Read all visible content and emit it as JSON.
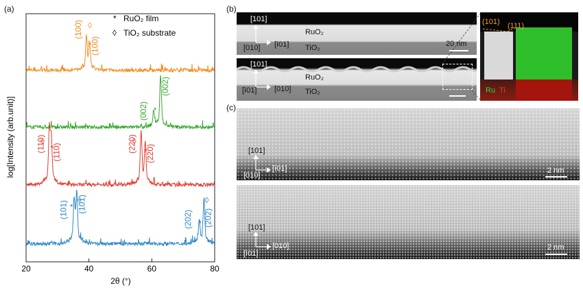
{
  "panels": {
    "a": "(a)",
    "b": "(b)",
    "c": "(c)"
  },
  "xrd": {
    "legend": {
      "film_symbol": "*",
      "film_label": "RuO₂ film",
      "substrate_symbol": "◊",
      "substrate_label": "TiO₂ substrate"
    },
    "ylabel": "log[Intensity (arb.unit)]",
    "xlabel": "2θ (°)",
    "xticks": [
      "20",
      "40",
      "60",
      "80"
    ],
    "traces": [
      {
        "name": "(100)",
        "color": "#F28C1E",
        "labels": [
          "(100)",
          "(100)"
        ]
      },
      {
        "name": "(002)",
        "color": "#3AA832",
        "labels": [
          "(002)",
          "(002)"
        ]
      },
      {
        "name": "(110)",
        "color": "#E23A2E",
        "labels": [
          "(110)",
          "(110)",
          "(220)",
          "(220)"
        ]
      },
      {
        "name": "(101)",
        "color": "#2D86C6",
        "labels": [
          "(101)",
          "(101)",
          "(202)",
          "(202)"
        ]
      }
    ]
  },
  "chart_data": {
    "type": "line",
    "xlabel": "2θ (°)",
    "ylabel": "log[Intensity (arb.unit)]",
    "xlim": [
      20,
      80
    ],
    "series": [
      {
        "name": "(100)",
        "peaks": [
          {
            "x": 39.2,
            "kind": "substrate"
          },
          {
            "x": 40.2,
            "kind": "film"
          }
        ]
      },
      {
        "name": "(002)",
        "peaks": [
          {
            "x": 60.6,
            "kind": "film"
          },
          {
            "x": 62.8,
            "kind": "substrate"
          }
        ]
      },
      {
        "name": "(110)",
        "peaks": [
          {
            "x": 27.4,
            "kind": "substrate"
          },
          {
            "x": 28.0,
            "kind": "film"
          },
          {
            "x": 56.6,
            "kind": "substrate"
          },
          {
            "x": 57.9,
            "kind": "film"
          }
        ]
      },
      {
        "name": "(101)",
        "peaks": [
          {
            "x": 35.3,
            "kind": "film"
          },
          {
            "x": 36.1,
            "kind": "substrate"
          },
          {
            "x": 75.1,
            "kind": "film"
          },
          {
            "x": 76.6,
            "kind": "substrate"
          }
        ]
      }
    ]
  },
  "tem": {
    "b_top": {
      "axis_up": "[101]",
      "axis_right": "[ī01]",
      "axis_out": "[010]",
      "film": "RuO₂",
      "substrate": "TiO₂",
      "scale": "20 nm"
    },
    "b_bottom": {
      "axis_up": "[101]",
      "axis_right": "[010]",
      "axis_out": "[ī01]",
      "film": "RuO₂",
      "substrate": "TiO₂"
    },
    "eds": {
      "facet1": "(101)",
      "facet2": "(111)",
      "ru": "Ru",
      "ti": "Ti"
    },
    "c_top": {
      "axis_up": "[101]",
      "axis_right": "[ī01]",
      "axis_out": "[010]",
      "scale": "2 nm"
    },
    "c_bottom": {
      "axis_up": "[101]",
      "axis_right": "[010]",
      "axis_out": "[ī01]",
      "scale": "2 nm"
    }
  }
}
